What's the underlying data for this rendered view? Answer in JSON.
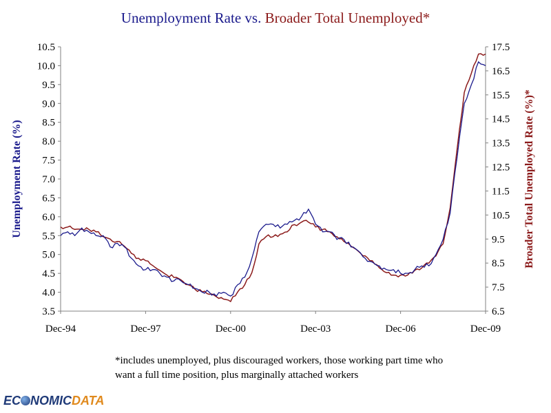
{
  "title": {
    "part1": "Unemployment Rate",
    "part2": " vs. ",
    "part3": "Broader Total Unemployed*"
  },
  "colors": {
    "series1": "#1a1a8c",
    "series2": "#8b1a1a",
    "axis": "#808080",
    "logo_blue": "#1f3a78",
    "logo_orange": "#e08a1e"
  },
  "footnote": {
    "line1": "*includes unemployed, plus discouraged workers, those working part time who",
    "line2": "want a full time position, plus marginally attached workers"
  },
  "logo": {
    "prefix": "EC",
    "middle": "NOMIC",
    "suffix": "DATA",
    "globe_icon": "globe-icon"
  },
  "chart_data": {
    "type": "line",
    "title": "Unemployment Rate vs. Broader Total Unemployed*",
    "xlabel": "",
    "ylabel": "Unemployment Rate (%)",
    "y2label": "Broader Total Unemployed Rate (%)*",
    "x_tick_labels": [
      "Dec-94",
      "Dec-97",
      "Dec-00",
      "Dec-03",
      "Dec-06",
      "Dec-09"
    ],
    "x_tick_months": [
      0,
      36,
      72,
      108,
      144,
      180
    ],
    "x_range": [
      0,
      180
    ],
    "ylim": [
      3.5,
      10.5
    ],
    "y2lim": [
      6.5,
      17.5
    ],
    "y_ticks": [
      "3.5",
      "4.0",
      "4.5",
      "5.0",
      "5.5",
      "6.0",
      "6.5",
      "7.0",
      "7.5",
      "8.0",
      "8.5",
      "9.0",
      "9.5",
      "10.0",
      "10.5"
    ],
    "y2_ticks": [
      "6.5",
      "7.5",
      "8.5",
      "9.5",
      "10.5",
      "11.5",
      "12.5",
      "13.5",
      "14.5",
      "15.5",
      "16.5",
      "17.5"
    ],
    "series": [
      {
        "name": "Unemployment Rate",
        "axis": "left",
        "anchor_months": [
          0,
          3,
          6,
          9,
          12,
          15,
          18,
          21,
          24,
          27,
          30,
          33,
          36,
          39,
          42,
          45,
          48,
          51,
          54,
          57,
          60,
          63,
          66,
          69,
          72,
          75,
          78,
          81,
          84,
          87,
          90,
          93,
          96,
          99,
          102,
          105,
          108,
          111,
          114,
          117,
          120,
          123,
          126,
          129,
          132,
          135,
          138,
          141,
          144,
          147,
          150,
          153,
          156,
          159,
          162,
          165,
          168,
          171,
          174,
          177,
          180
        ],
        "values": [
          5.5,
          5.6,
          5.5,
          5.7,
          5.6,
          5.5,
          5.5,
          5.2,
          5.3,
          5.2,
          4.9,
          4.7,
          4.6,
          4.6,
          4.5,
          4.4,
          4.3,
          4.3,
          4.2,
          4.1,
          4.0,
          4.0,
          3.9,
          4.0,
          3.9,
          4.2,
          4.4,
          4.9,
          5.6,
          5.8,
          5.8,
          5.7,
          5.8,
          5.9,
          6.0,
          6.2,
          5.8,
          5.6,
          5.6,
          5.4,
          5.4,
          5.2,
          5.1,
          4.9,
          4.8,
          4.7,
          4.6,
          4.6,
          4.5,
          4.5,
          4.6,
          4.7,
          4.7,
          5.0,
          5.4,
          6.1,
          7.6,
          9.0,
          9.5,
          10.1,
          10.0
        ]
      },
      {
        "name": "Broader Total Unemployed*",
        "axis": "right",
        "anchor_months": [
          0,
          3,
          6,
          9,
          12,
          15,
          18,
          21,
          24,
          27,
          30,
          33,
          36,
          39,
          42,
          45,
          48,
          51,
          54,
          57,
          60,
          63,
          66,
          69,
          72,
          75,
          78,
          81,
          84,
          87,
          90,
          93,
          96,
          99,
          102,
          105,
          108,
          111,
          114,
          117,
          120,
          123,
          126,
          129,
          132,
          135,
          138,
          141,
          144,
          147,
          150,
          153,
          156,
          159,
          162,
          165,
          168,
          171,
          174,
          177,
          180
        ],
        "values": [
          10.0,
          10.0,
          9.9,
          9.9,
          9.9,
          9.8,
          9.6,
          9.5,
          9.4,
          9.2,
          8.9,
          8.7,
          8.6,
          8.4,
          8.2,
          8.0,
          7.9,
          7.8,
          7.6,
          7.4,
          7.3,
          7.2,
          7.1,
          7.0,
          6.9,
          7.3,
          7.6,
          8.1,
          9.3,
          9.6,
          9.6,
          9.7,
          9.8,
          10.1,
          10.2,
          10.2,
          10.0,
          9.9,
          9.8,
          9.6,
          9.4,
          9.2,
          9.0,
          8.8,
          8.6,
          8.3,
          8.1,
          8.0,
          8.0,
          8.0,
          8.2,
          8.3,
          8.5,
          8.8,
          9.3,
          10.8,
          13.3,
          15.6,
          16.4,
          17.2,
          17.2
        ]
      }
    ]
  }
}
